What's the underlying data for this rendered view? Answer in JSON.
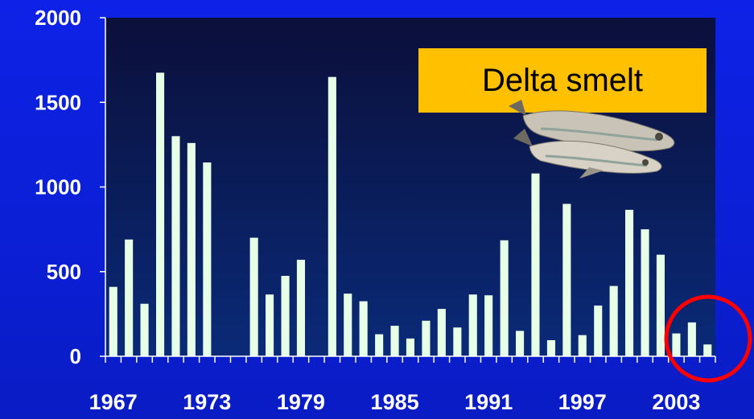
{
  "chart_data": {
    "type": "bar",
    "title": "",
    "xlabel": "",
    "ylabel": "",
    "ylim": [
      0,
      2000
    ],
    "yticks": [
      0,
      500,
      1000,
      1500,
      2000
    ],
    "xtick_labels": [
      "1967",
      "1973",
      "1979",
      "1985",
      "1991",
      "1997",
      "2003"
    ],
    "categories": [
      "1967",
      "1968",
      "1969",
      "1970",
      "1971",
      "1972",
      "1973",
      "1974",
      "1975",
      "1976",
      "1977",
      "1978",
      "1979",
      "1980",
      "1981",
      "1982",
      "1983",
      "1984",
      "1985",
      "1986",
      "1987",
      "1988",
      "1989",
      "1990",
      "1991",
      "1992",
      "1993",
      "1994",
      "1995",
      "1996",
      "1997",
      "1998",
      "1999",
      "2000",
      "2001",
      "2002",
      "2003",
      "2004",
      "2005"
    ],
    "values": [
      410,
      690,
      310,
      1675,
      1300,
      1260,
      1145,
      0,
      0,
      700,
      365,
      475,
      570,
      0,
      1650,
      370,
      325,
      130,
      180,
      105,
      210,
      280,
      170,
      365,
      360,
      685,
      150,
      1080,
      95,
      900,
      125,
      300,
      415,
      865,
      750,
      600,
      135,
      200,
      70
    ],
    "annotation": "Delta smelt",
    "grid": false,
    "colors": {
      "bar": "#e6ffe6",
      "background": "#0a1a40",
      "annotation_box": "#ffc000",
      "circle": "#ff0000"
    }
  }
}
